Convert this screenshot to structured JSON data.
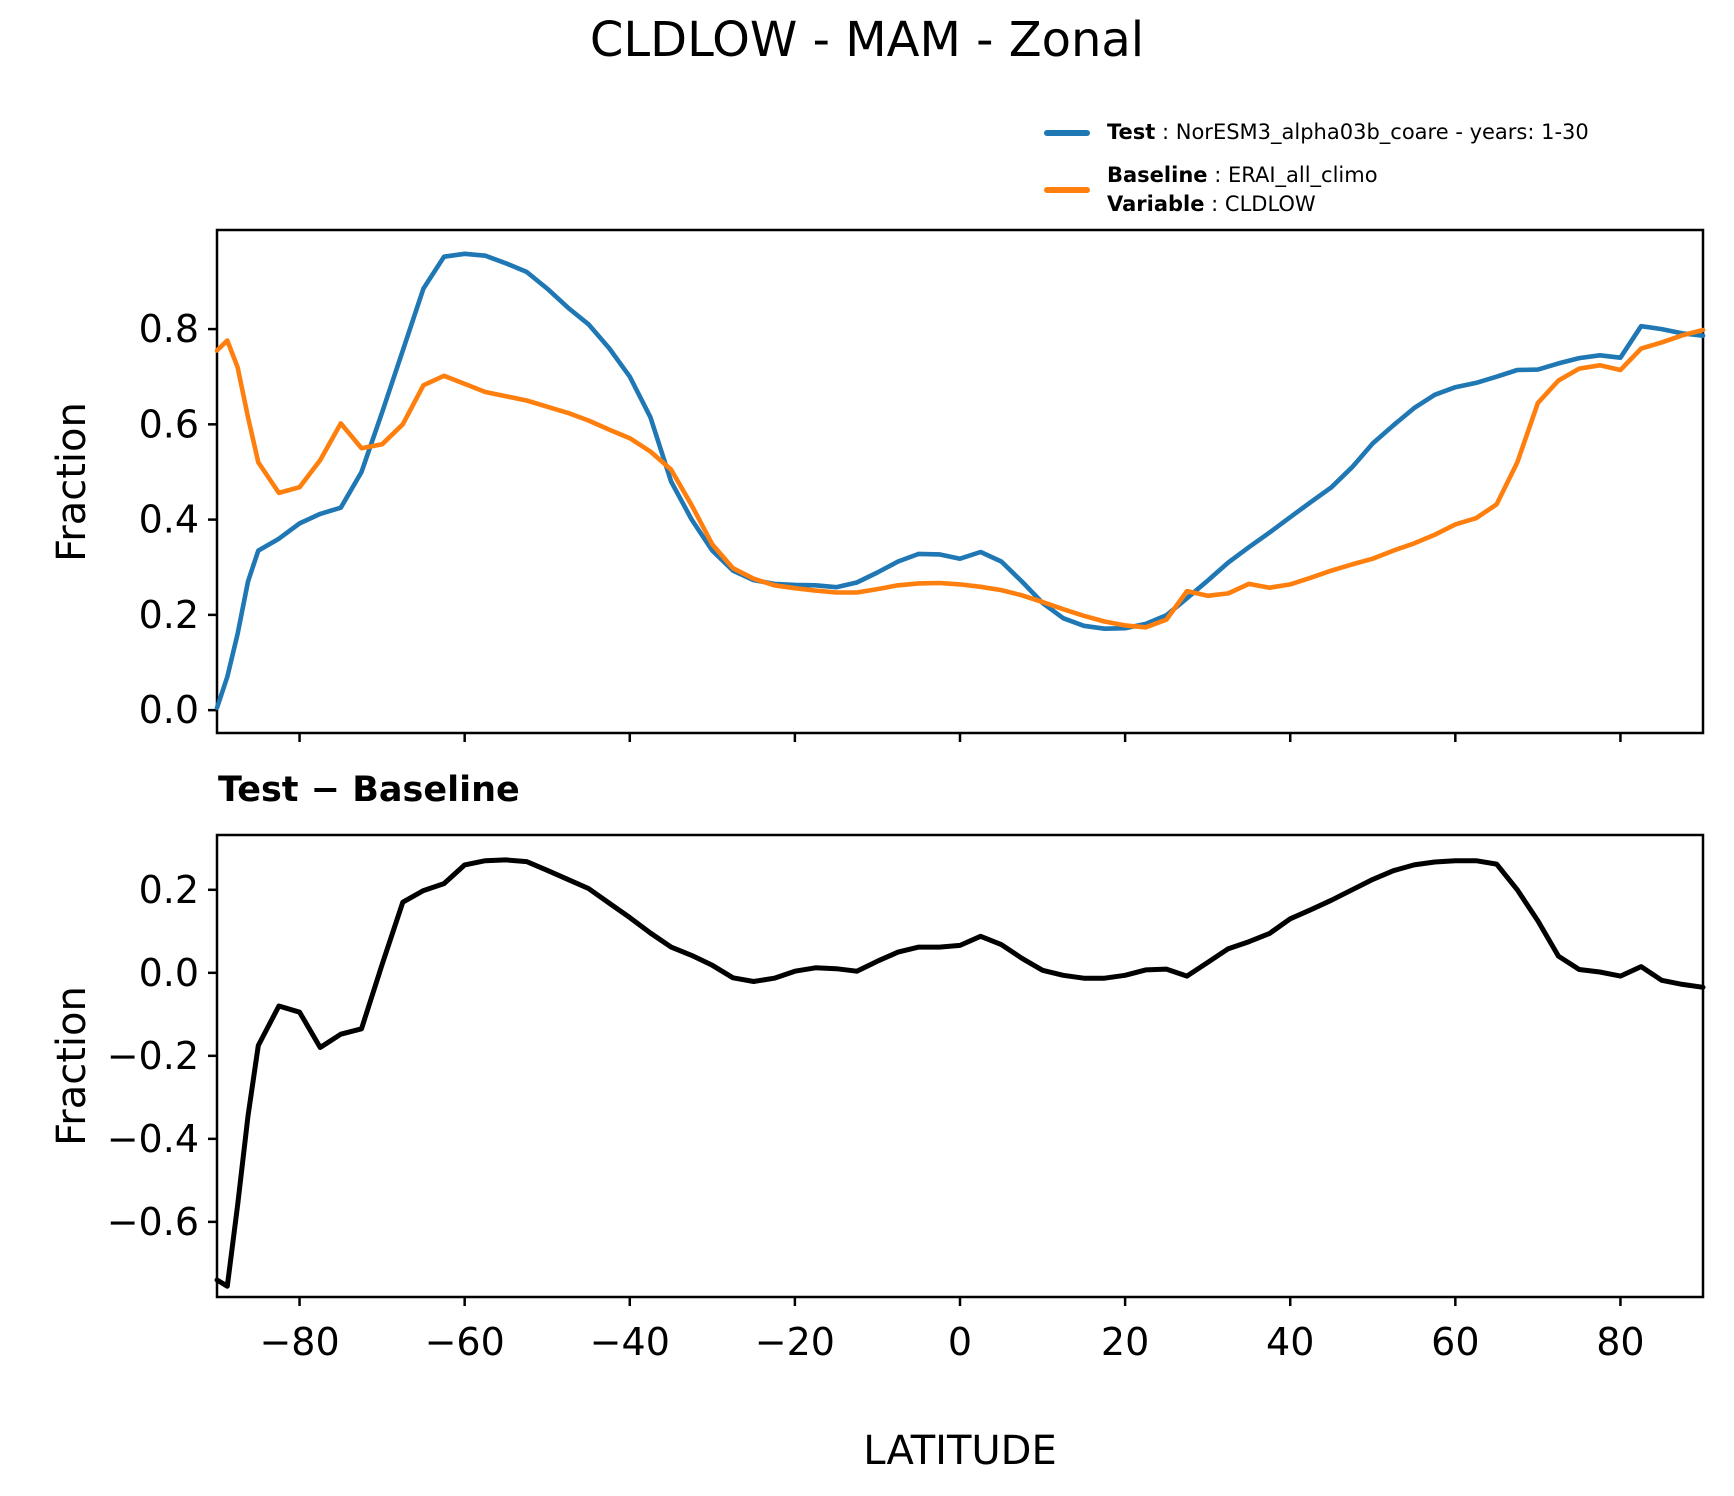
{
  "figure": {
    "title": "CLDLOW - MAM - Zonal"
  },
  "legend": {
    "entries": [
      {
        "color": "#1f77b4",
        "lines": [
          {
            "label": "Test",
            "text": " : NorESM3_alpha03b_coare - years: 1-30"
          }
        ]
      },
      {
        "color": "#ff7f0e",
        "lines": [
          {
            "label": "Baseline",
            "text": " : ERAI_all_climo"
          },
          {
            "label": "Variable",
            "text": " : CLDLOW"
          }
        ]
      }
    ]
  },
  "chart_data": [
    {
      "type": "line",
      "title": "",
      "ylabel": "Fraction",
      "xlabel": "",
      "xlim": [
        -90,
        90
      ],
      "ylim": [
        -0.048,
        1.008
      ],
      "grid": false,
      "legend_position": "top-right-above-axes",
      "xticks": [
        -80,
        -60,
        -40,
        -20,
        0,
        20,
        40,
        60,
        80
      ],
      "xtick_labels": [
        "",
        "",
        "",
        "",
        "",
        "",
        "",
        "",
        ""
      ],
      "yticks": [
        0.0,
        0.2,
        0.4,
        0.6,
        0.8
      ],
      "ytick_labels": [
        "0.0",
        "0.2",
        "0.4",
        "0.6",
        "0.8"
      ],
      "x": [
        -90,
        -88.75,
        -87.5,
        -86.25,
        -85,
        -82.5,
        -80,
        -77.5,
        -75,
        -72.5,
        -70,
        -67.5,
        -65,
        -62.5,
        -60,
        -57.5,
        -55,
        -52.5,
        -50,
        -47.5,
        -45,
        -42.5,
        -40,
        -37.5,
        -35,
        -32.5,
        -30,
        -27.5,
        -25,
        -22.5,
        -20,
        -17.5,
        -15,
        -12.5,
        -10,
        -7.5,
        -5,
        -2.5,
        0,
        2.5,
        5,
        7.5,
        10,
        12.5,
        15,
        17.5,
        20,
        22.5,
        25,
        27.5,
        30,
        32.5,
        35,
        37.5,
        40,
        42.5,
        45,
        47.5,
        50,
        52.5,
        55,
        57.5,
        60,
        62.5,
        65,
        67.5,
        70,
        72.5,
        75,
        77.5,
        80,
        82.5,
        85,
        87.5,
        90
      ],
      "series": [
        {
          "name": "Test : NorESM3_alpha03b_coare - years: 1-30",
          "color": "#1f77b4",
          "values": [
            0.005,
            0.07,
            0.16,
            0.27,
            0.335,
            0.36,
            0.392,
            0.412,
            0.425,
            0.5,
            0.625,
            0.755,
            0.885,
            0.952,
            0.958,
            0.954,
            0.938,
            0.92,
            0.885,
            0.845,
            0.81,
            0.76,
            0.7,
            0.615,
            0.48,
            0.4,
            0.335,
            0.293,
            0.273,
            0.265,
            0.263,
            0.262,
            0.258,
            0.268,
            0.289,
            0.312,
            0.328,
            0.327,
            0.318,
            0.332,
            0.312,
            0.27,
            0.225,
            0.193,
            0.177,
            0.171,
            0.172,
            0.181,
            0.199,
            0.235,
            0.272,
            0.31,
            0.342,
            0.373,
            0.405,
            0.437,
            0.468,
            0.51,
            0.56,
            0.598,
            0.634,
            0.662,
            0.678,
            0.687,
            0.7,
            0.714,
            0.715,
            0.728,
            0.739,
            0.745,
            0.74,
            0.806,
            0.8,
            0.791,
            0.786
          ]
        },
        {
          "name": "Baseline : ERAI_all_climo  Variable : CLDLOW",
          "color": "#ff7f0e",
          "values": [
            0.755,
            0.776,
            0.72,
            0.615,
            0.52,
            0.456,
            0.468,
            0.525,
            0.602,
            0.55,
            0.558,
            0.6,
            0.682,
            0.702,
            0.685,
            0.668,
            0.659,
            0.65,
            0.637,
            0.624,
            0.608,
            0.589,
            0.571,
            0.543,
            0.505,
            0.43,
            0.348,
            0.298,
            0.276,
            0.262,
            0.256,
            0.251,
            0.247,
            0.247,
            0.254,
            0.262,
            0.266,
            0.267,
            0.264,
            0.259,
            0.252,
            0.241,
            0.227,
            0.212,
            0.198,
            0.186,
            0.178,
            0.174,
            0.19,
            0.25,
            0.24,
            0.245,
            0.265,
            0.257,
            0.264,
            0.278,
            0.293,
            0.306,
            0.318,
            0.335,
            0.35,
            0.368,
            0.39,
            0.403,
            0.432,
            0.52,
            0.645,
            0.692,
            0.717,
            0.724,
            0.714,
            0.759,
            0.772,
            0.787,
            0.798
          ]
        }
      ]
    },
    {
      "type": "line",
      "title": "Test − Baseline",
      "ylabel": "Fraction",
      "xlabel": "LATITUDE",
      "xlim": [
        -90,
        90
      ],
      "ylim": [
        -0.781,
        0.332
      ],
      "grid": false,
      "xticks": [
        -80,
        -60,
        -40,
        -20,
        0,
        20,
        40,
        60,
        80
      ],
      "xtick_labels": [
        "−80",
        "−60",
        "−40",
        "−20",
        "0",
        "20",
        "40",
        "60",
        "80"
      ],
      "yticks": [
        0.2,
        0.0,
        -0.2,
        -0.4,
        -0.6
      ],
      "ytick_labels": [
        "0.2",
        "0.0",
        "−0.2",
        "−0.4",
        "−0.6"
      ],
      "x": [
        -90,
        -88.75,
        -87.5,
        -86.25,
        -85,
        -82.5,
        -80,
        -77.5,
        -75,
        -72.5,
        -70,
        -67.5,
        -65,
        -62.5,
        -60,
        -57.5,
        -55,
        -52.5,
        -50,
        -47.5,
        -45,
        -42.5,
        -40,
        -37.5,
        -35,
        -32.5,
        -30,
        -27.5,
        -25,
        -22.5,
        -20,
        -17.5,
        -15,
        -12.5,
        -10,
        -7.5,
        -5,
        -2.5,
        0,
        2.5,
        5,
        7.5,
        10,
        12.5,
        15,
        17.5,
        20,
        22.5,
        25,
        27.5,
        30,
        32.5,
        35,
        37.5,
        40,
        42.5,
        45,
        47.5,
        50,
        52.5,
        55,
        57.5,
        60,
        62.5,
        65,
        67.5,
        70,
        72.5,
        75,
        77.5,
        80,
        82.5,
        85,
        87.5,
        90
      ],
      "series": [
        {
          "name": "Test − Baseline",
          "color": "#000000",
          "values": [
            -0.74,
            -0.755,
            -0.56,
            -0.345,
            -0.175,
            -0.08,
            -0.095,
            -0.18,
            -0.148,
            -0.135,
            0.02,
            0.17,
            0.198,
            0.215,
            0.26,
            0.27,
            0.272,
            0.268,
            0.247,
            0.225,
            0.203,
            0.168,
            0.133,
            0.096,
            0.062,
            0.042,
            0.018,
            -0.012,
            -0.021,
            -0.013,
            0.004,
            0.012,
            0.01,
            0.004,
            0.028,
            0.05,
            0.062,
            0.062,
            0.066,
            0.088,
            0.068,
            0.035,
            0.006,
            -0.006,
            -0.013,
            -0.013,
            -0.006,
            0.007,
            0.009,
            -0.008,
            0.025,
            0.058,
            0.075,
            0.095,
            0.13,
            0.152,
            0.175,
            0.2,
            0.225,
            0.246,
            0.26,
            0.267,
            0.27,
            0.27,
            0.262,
            0.2,
            0.125,
            0.04,
            0.008,
            0.002,
            -0.008,
            0.015,
            -0.018,
            -0.028,
            -0.035
          ]
        }
      ]
    }
  ]
}
